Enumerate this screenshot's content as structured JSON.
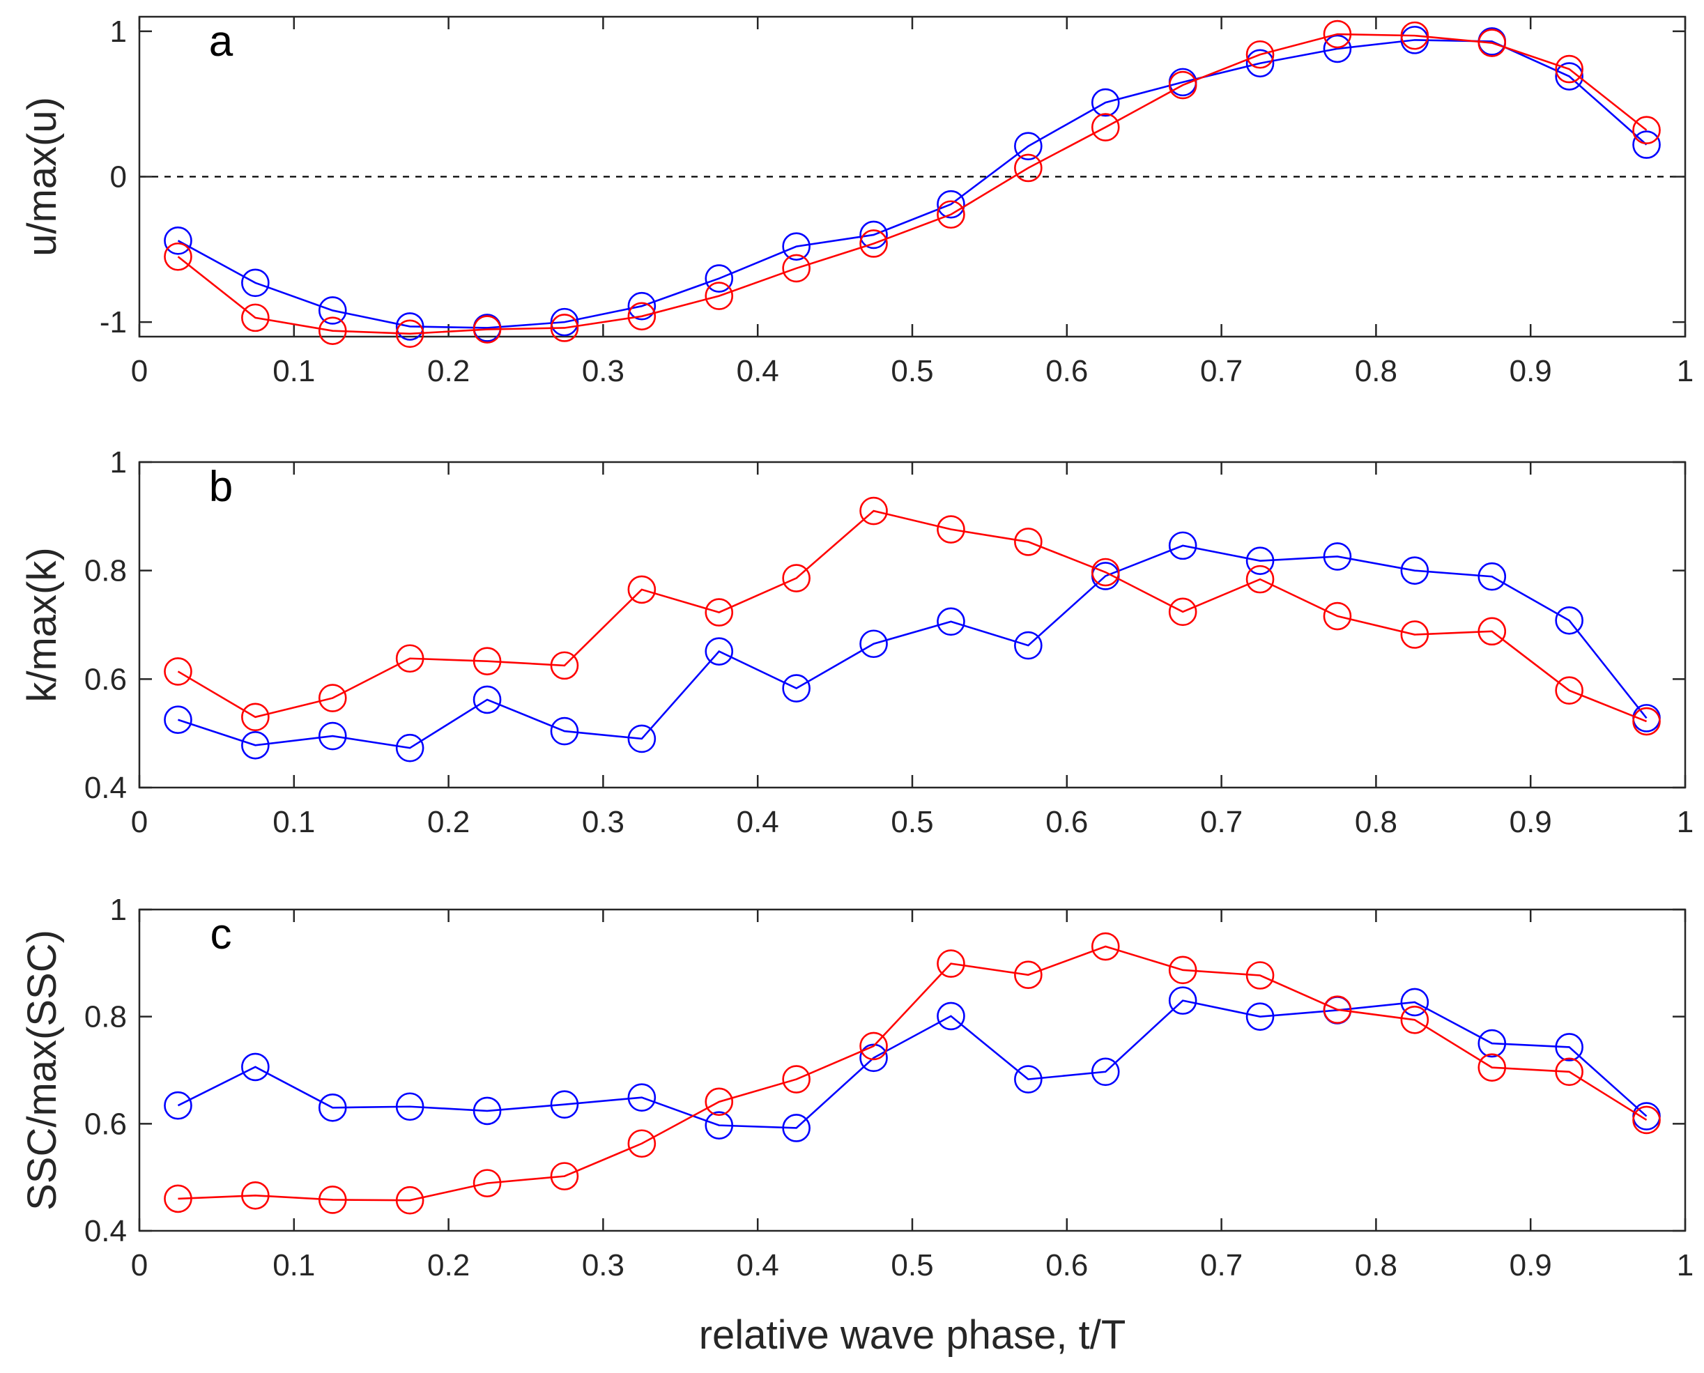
{
  "chart_data": [
    {
      "type": "line",
      "panel": "a",
      "tag": "a",
      "ylabel": "u/max(u)",
      "xlabel": "",
      "xlim": [
        0,
        1
      ],
      "ylim": [
        -1.1,
        1.1
      ],
      "xticks": [
        0,
        0.1,
        0.2,
        0.3,
        0.4,
        0.5,
        0.6,
        0.7,
        0.8,
        0.9,
        1
      ],
      "xtick_labels": [
        "0",
        "0.1",
        "0.2",
        "0.3",
        "0.4",
        "0.5",
        "0.6",
        "0.7",
        "0.8",
        "0.9",
        "1"
      ],
      "yticks": [
        -1,
        0,
        1
      ],
      "ytick_labels": [
        "-1",
        "0",
        "1"
      ],
      "zero_line": true,
      "x": [
        0.025,
        0.075,
        0.125,
        0.175,
        0.225,
        0.275,
        0.325,
        0.375,
        0.425,
        0.475,
        0.525,
        0.575,
        0.625,
        0.675,
        0.725,
        0.775,
        0.825,
        0.875,
        0.925,
        0.975
      ],
      "series": [
        {
          "name": "blue",
          "color": "#0000ff",
          "values": [
            -0.44,
            -0.73,
            -0.92,
            -1.03,
            -1.04,
            -1.0,
            -0.89,
            -0.7,
            -0.48,
            -0.4,
            -0.19,
            0.21,
            0.51,
            0.65,
            0.78,
            0.88,
            0.94,
            0.93,
            0.69,
            0.22
          ]
        },
        {
          "name": "red",
          "color": "#ff0000",
          "values": [
            -0.55,
            -0.97,
            -1.06,
            -1.08,
            -1.05,
            -1.04,
            -0.96,
            -0.82,
            -0.63,
            -0.46,
            -0.26,
            0.06,
            0.34,
            0.63,
            0.84,
            0.98,
            0.97,
            0.92,
            0.74,
            0.32
          ]
        }
      ]
    },
    {
      "type": "line",
      "panel": "b",
      "tag": "b",
      "ylabel": "k/max(k)",
      "xlabel": "",
      "xlim": [
        0,
        1
      ],
      "ylim": [
        0.4,
        1
      ],
      "xticks": [
        0,
        0.1,
        0.2,
        0.3,
        0.4,
        0.5,
        0.6,
        0.7,
        0.8,
        0.9,
        1
      ],
      "xtick_labels": [
        "0",
        "0.1",
        "0.2",
        "0.3",
        "0.4",
        "0.5",
        "0.6",
        "0.7",
        "0.8",
        "0.9",
        "1"
      ],
      "yticks": [
        0.4,
        0.6,
        0.8,
        1
      ],
      "ytick_labels": [
        "0.4",
        "0.6",
        "0.8",
        "1"
      ],
      "zero_line": false,
      "x": [
        0.025,
        0.075,
        0.125,
        0.175,
        0.225,
        0.275,
        0.325,
        0.375,
        0.425,
        0.475,
        0.525,
        0.575,
        0.625,
        0.675,
        0.725,
        0.775,
        0.825,
        0.875,
        0.925,
        0.975
      ],
      "series": [
        {
          "name": "blue",
          "color": "#0000ff",
          "values": [
            0.525,
            0.478,
            0.495,
            0.473,
            0.562,
            0.504,
            0.49,
            0.651,
            0.583,
            0.665,
            0.706,
            0.662,
            0.79,
            0.846,
            0.818,
            0.826,
            0.8,
            0.789,
            0.708,
            0.528
          ]
        },
        {
          "name": "red",
          "color": "#ff0000",
          "values": [
            0.614,
            0.53,
            0.565,
            0.638,
            0.633,
            0.625,
            0.765,
            0.723,
            0.786,
            0.91,
            0.876,
            0.853,
            0.797,
            0.724,
            0.784,
            0.716,
            0.682,
            0.688,
            0.579,
            0.522
          ]
        }
      ]
    },
    {
      "type": "line",
      "panel": "c",
      "tag": "c",
      "ylabel": "SSC/max(SSC)",
      "xlabel": "relative wave phase, t/T",
      "xlim": [
        0,
        1
      ],
      "ylim": [
        0.4,
        1
      ],
      "xticks": [
        0,
        0.1,
        0.2,
        0.3,
        0.4,
        0.5,
        0.6,
        0.7,
        0.8,
        0.9,
        1
      ],
      "xtick_labels": [
        "0",
        "0.1",
        "0.2",
        "0.3",
        "0.4",
        "0.5",
        "0.6",
        "0.7",
        "0.8",
        "0.9",
        "1"
      ],
      "yticks": [
        0.4,
        0.6,
        0.8,
        1
      ],
      "ytick_labels": [
        "0.4",
        "0.6",
        "0.8",
        "1"
      ],
      "zero_line": false,
      "x": [
        0.025,
        0.075,
        0.125,
        0.175,
        0.225,
        0.275,
        0.325,
        0.375,
        0.425,
        0.475,
        0.525,
        0.575,
        0.625,
        0.675,
        0.725,
        0.775,
        0.825,
        0.875,
        0.925,
        0.975
      ],
      "series": [
        {
          "name": "blue",
          "color": "#0000ff",
          "values": [
            0.634,
            0.706,
            0.63,
            0.632,
            0.624,
            0.636,
            0.649,
            0.597,
            0.592,
            0.723,
            0.801,
            0.683,
            0.697,
            0.83,
            0.8,
            0.812,
            0.827,
            0.75,
            0.743,
            0.614
          ]
        },
        {
          "name": "red",
          "color": "#ff0000",
          "values": [
            0.46,
            0.466,
            0.458,
            0.457,
            0.489,
            0.502,
            0.563,
            0.641,
            0.683,
            0.745,
            0.899,
            0.878,
            0.931,
            0.887,
            0.877,
            0.813,
            0.794,
            0.705,
            0.697,
            0.607
          ]
        }
      ]
    }
  ]
}
